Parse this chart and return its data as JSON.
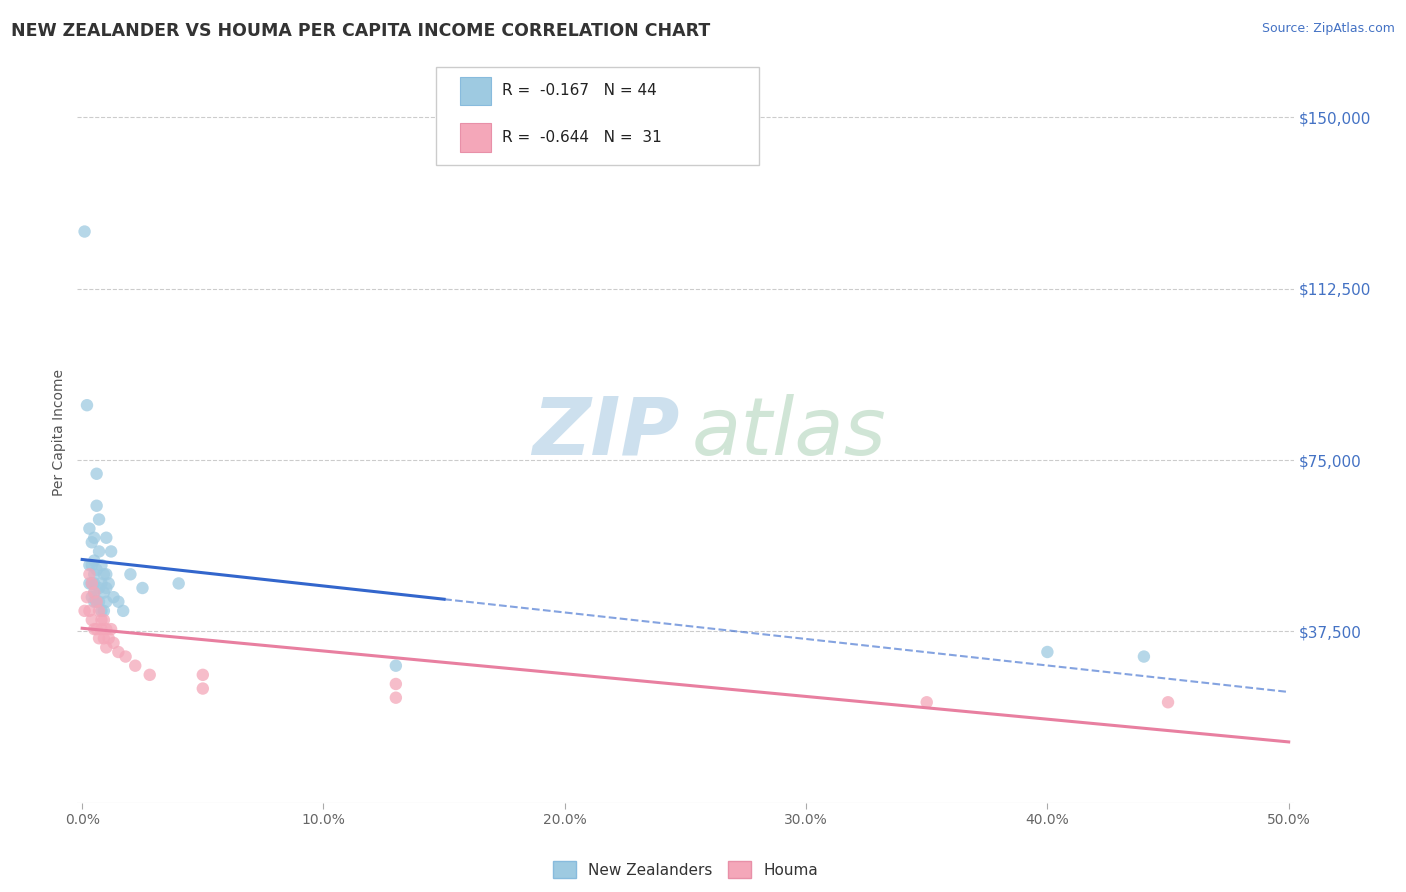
{
  "title": "NEW ZEALANDER VS HOUMA PER CAPITA INCOME CORRELATION CHART",
  "source": "Source: ZipAtlas.com",
  "ylabel": "Per Capita Income",
  "ytick_labels": [
    "$150,000",
    "$112,500",
    "$75,000",
    "$37,500"
  ],
  "ytick_values": [
    150000,
    112500,
    75000,
    37500
  ],
  "ylim": [
    0,
    162000
  ],
  "xlim": [
    -0.002,
    0.502
  ],
  "nz_color": "#9ecae1",
  "houma_color": "#f4a7b9",
  "nz_line_color": "#3366cc",
  "houma_line_color": "#e87fa0",
  "bg_color": "#ffffff",
  "nz_scatter_x": [
    0.001,
    0.002,
    0.003,
    0.003,
    0.003,
    0.004,
    0.004,
    0.004,
    0.004,
    0.005,
    0.005,
    0.005,
    0.005,
    0.005,
    0.005,
    0.006,
    0.006,
    0.006,
    0.006,
    0.007,
    0.007,
    0.007,
    0.007,
    0.008,
    0.008,
    0.008,
    0.009,
    0.009,
    0.009,
    0.01,
    0.01,
    0.01,
    0.01,
    0.011,
    0.012,
    0.013,
    0.015,
    0.017,
    0.02,
    0.025,
    0.04,
    0.13,
    0.4,
    0.44
  ],
  "nz_scatter_y": [
    125000,
    87000,
    60000,
    52000,
    48000,
    57000,
    52000,
    48000,
    45000,
    58000,
    53000,
    50000,
    48000,
    46000,
    44000,
    72000,
    65000,
    51000,
    44000,
    62000,
    55000,
    47000,
    44000,
    52000,
    48000,
    42000,
    50000,
    46000,
    42000,
    58000,
    50000,
    47000,
    44000,
    48000,
    55000,
    45000,
    44000,
    42000,
    50000,
    47000,
    48000,
    30000,
    33000,
    32000
  ],
  "houma_scatter_x": [
    0.001,
    0.002,
    0.003,
    0.003,
    0.004,
    0.004,
    0.005,
    0.005,
    0.006,
    0.006,
    0.007,
    0.007,
    0.008,
    0.008,
    0.009,
    0.009,
    0.01,
    0.01,
    0.011,
    0.012,
    0.013,
    0.015,
    0.018,
    0.022,
    0.028,
    0.05,
    0.05,
    0.13,
    0.13,
    0.35,
    0.45
  ],
  "houma_scatter_y": [
    42000,
    45000,
    50000,
    42000,
    48000,
    40000,
    46000,
    38000,
    44000,
    38000,
    42000,
    36000,
    40000,
    38000,
    40000,
    36000,
    38000,
    34000,
    36000,
    38000,
    35000,
    33000,
    32000,
    30000,
    28000,
    28000,
    25000,
    26000,
    23000,
    22000,
    22000
  ]
}
